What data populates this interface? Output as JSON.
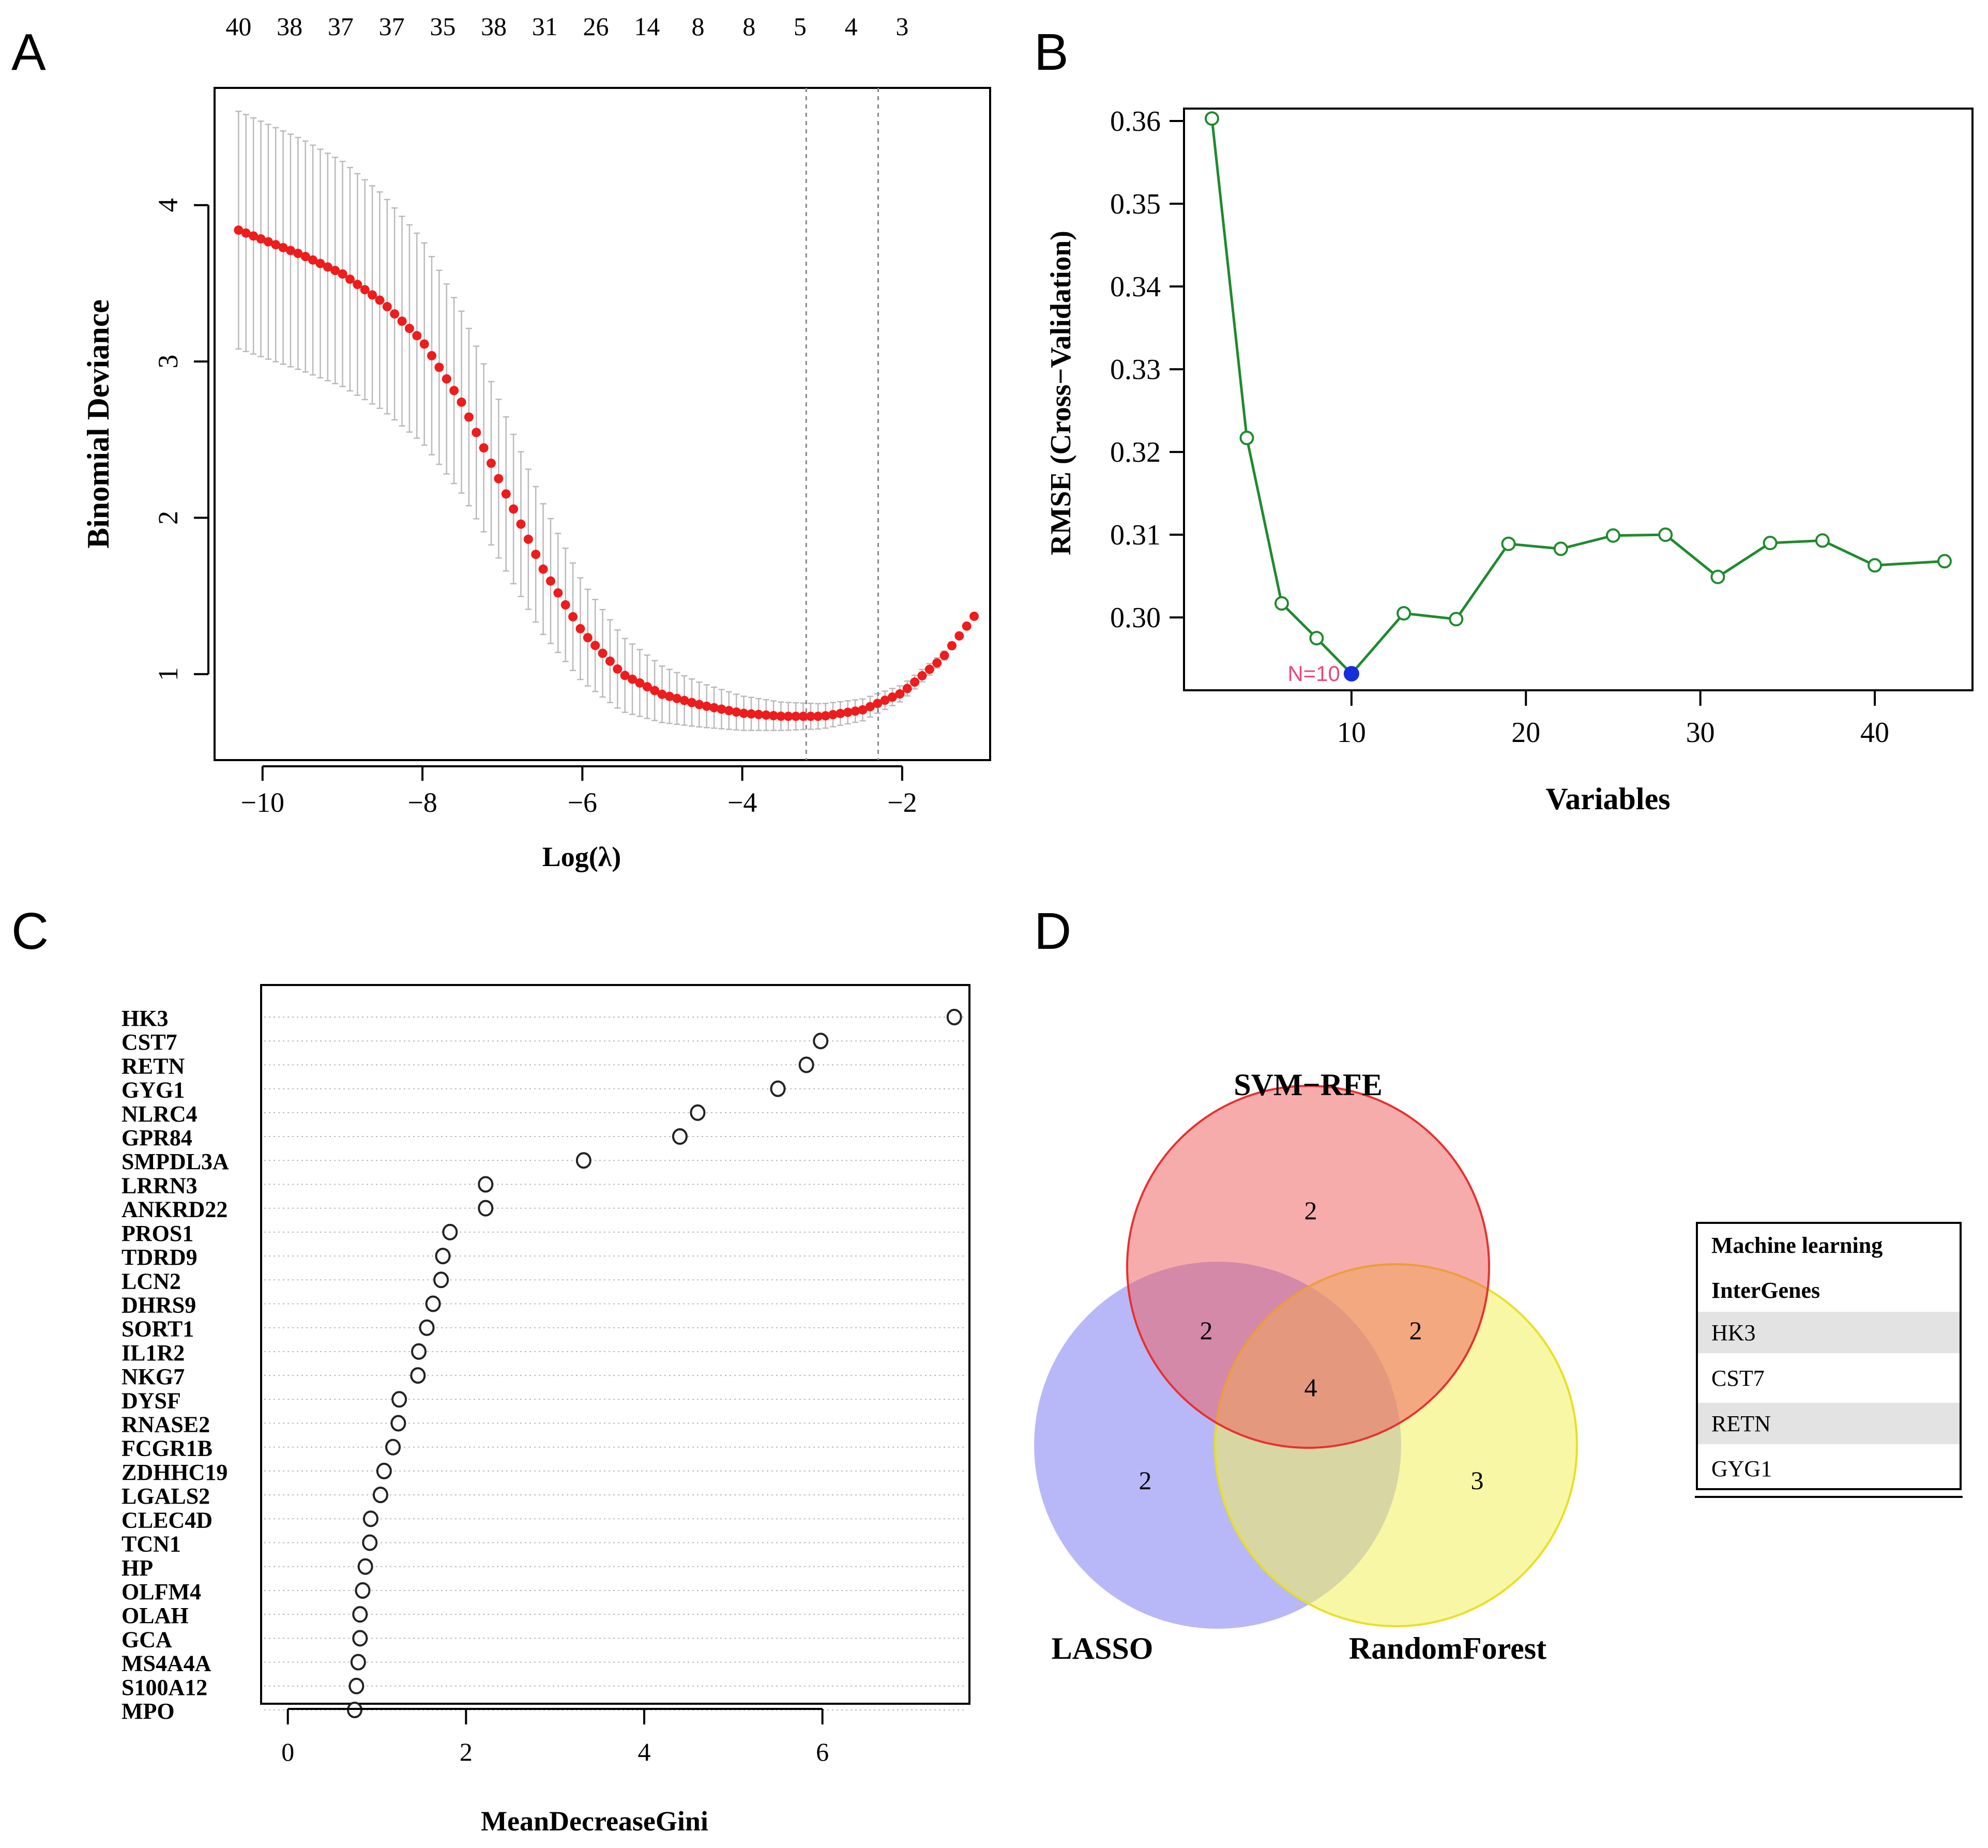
{
  "panel_letters": [
    "A",
    "B",
    "C",
    "D"
  ],
  "colors": {
    "lasso_points": "#ee1c1c",
    "error_bars": "#b9b9b9",
    "svm_line": "#1f8a2e",
    "svm_best": "#1530d8",
    "best_label": "#e8497a",
    "venn_svm": "#f05a5a",
    "venn_lasso": "#7e7ef2",
    "venn_rf": "#f2f05c"
  },
  "chart_data": [
    {
      "panel": "A",
      "type": "line",
      "title": "",
      "xlabel": "Log(λ)",
      "ylabel": "Binomial Deviance",
      "xlim": [
        -10.6,
        -0.9
      ],
      "ylim": [
        0.45,
        4.75
      ],
      "x_ticks": [
        -10,
        -8,
        -6,
        -4,
        -2
      ],
      "x_tick_labels": [
        "−10",
        "−8",
        "−6",
        "−4",
        "−2"
      ],
      "y_ticks": [
        1,
        2,
        3,
        4
      ],
      "y_tick_labels": [
        "1",
        "2",
        "3",
        "4"
      ],
      "top_axis_labels": [
        "40",
        "38",
        "37",
        "37",
        "35",
        "38",
        "31",
        "26",
        "14",
        "8",
        "8",
        "5",
        "4",
        "3"
      ],
      "vlines": [
        -3.2,
        -2.3
      ],
      "series": [
        {
          "name": "cv mean",
          "points_x_range": [
            -10.3,
            -1.1
          ],
          "n_points": 100,
          "curve_x": [
            -10.3,
            -9.5,
            -9.0,
            -8.5,
            -8.0,
            -7.5,
            -7.0,
            -6.5,
            -6.0,
            -5.5,
            -5.0,
            -4.5,
            -4.0,
            -3.5,
            -3.0,
            -2.5,
            -2.0,
            -1.5,
            -1.1
          ],
          "curve_y": [
            3.84,
            3.68,
            3.56,
            3.38,
            3.13,
            2.73,
            2.2,
            1.68,
            1.27,
            1.0,
            0.87,
            0.8,
            0.75,
            0.73,
            0.73,
            0.77,
            0.88,
            1.1,
            1.37
          ],
          "error_x": [
            -10.3,
            -9.5,
            -9.0,
            -8.5,
            -8.0,
            -7.5,
            -7.0,
            -6.5,
            -6.0,
            -5.5,
            -5.0,
            -4.5,
            -4.0,
            -3.5,
            -3.0,
            -2.5,
            -2.0,
            -1.5,
            -1.1
          ],
          "error_half": [
            0.76,
            0.74,
            0.72,
            0.69,
            0.65,
            0.58,
            0.5,
            0.42,
            0.32,
            0.24,
            0.18,
            0.14,
            0.11,
            0.09,
            0.08,
            0.07,
            0.05,
            0.03,
            0.0
          ]
        }
      ]
    },
    {
      "panel": "B",
      "type": "line",
      "title": "",
      "xlabel": "Variables",
      "ylabel": "RMSE (Cross−Validation)",
      "xlim": [
        0.4,
        45.6
      ],
      "ylim": [
        0.2912,
        0.3615
      ],
      "x_ticks": [
        10,
        20,
        30,
        40
      ],
      "x_tick_labels": [
        "10",
        "20",
        "30",
        "40"
      ],
      "y_ticks": [
        0.3,
        0.31,
        0.32,
        0.33,
        0.34,
        0.35,
        0.36
      ],
      "y_tick_labels": [
        "0.30",
        "0.31",
        "0.32",
        "0.33",
        "0.34",
        "0.35",
        "0.36"
      ],
      "x": [
        2,
        4,
        6,
        8,
        10,
        13,
        16,
        19,
        22,
        25,
        28,
        31,
        34,
        37,
        40,
        44
      ],
      "values": [
        0.3603,
        0.3217,
        0.3017,
        0.2975,
        0.2932,
        0.3005,
        0.2998,
        0.3089,
        0.3083,
        0.3099,
        0.31,
        0.3049,
        0.309,
        0.3093,
        0.3063,
        0.3068
      ],
      "best_x": 10,
      "best_value": 0.2932,
      "best_label": "N=10"
    },
    {
      "panel": "C",
      "type": "scatter",
      "title": "",
      "xlabel": "MeanDecreaseGini",
      "ylabel": "",
      "xlim": [
        -0.3,
        7.65
      ],
      "x_ticks": [
        0,
        2,
        4,
        6
      ],
      "x_tick_labels": [
        "0",
        "2",
        "4",
        "6"
      ],
      "categories": [
        "HK3",
        "CST7",
        "RETN",
        "GYG1",
        "NLRC4",
        "GPR84",
        "SMPDL3A",
        "LRRN3",
        "ANKRD22",
        "PROS1",
        "TDRD9",
        "LCN2",
        "DHRS9",
        "SORT1",
        "IL1R2",
        "NKG7",
        "DYSF",
        "RNASE2",
        "FCGR1B",
        "ZDHHC19",
        "LGALS2",
        "CLEC4D",
        "TCN1",
        "HP",
        "OLFM4",
        "OLAH",
        "GCA",
        "MS4A4A",
        "S100A12",
        "MPO"
      ],
      "values": [
        7.48,
        5.98,
        5.82,
        5.5,
        4.6,
        4.4,
        3.32,
        2.22,
        2.22,
        1.82,
        1.74,
        1.72,
        1.63,
        1.56,
        1.47,
        1.46,
        1.25,
        1.24,
        1.18,
        1.08,
        1.04,
        0.93,
        0.92,
        0.87,
        0.84,
        0.81,
        0.81,
        0.79,
        0.77,
        0.75
      ]
    },
    {
      "panel": "D",
      "type": "table",
      "title": "",
      "venn_sets": [
        "SVM−RFE",
        "LASSO",
        "RandomForest"
      ],
      "venn_counts": {
        "svm_only": "2",
        "svm_lasso": "2",
        "svm_rf": "2",
        "all_three": "4",
        "lasso_only": "2",
        "rf_only": "3"
      },
      "table_header": [
        "Machine learning",
        "InterGenes"
      ],
      "table_rows": [
        "HK3",
        "CST7",
        "RETN",
        "GYG1"
      ]
    }
  ]
}
